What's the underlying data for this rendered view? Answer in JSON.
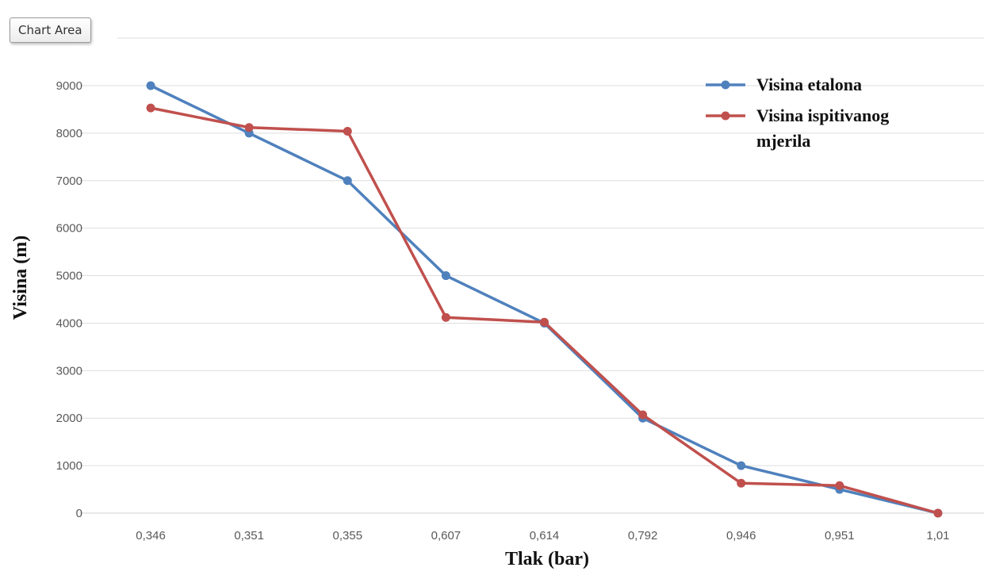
{
  "ui": {
    "tooltip": "Chart Area"
  },
  "chart_data": {
    "type": "line",
    "categories": [
      "0,346",
      "0,351",
      "0,355",
      "0,607",
      "0,614",
      "0,792",
      "0,946",
      "0,951",
      "1,01"
    ],
    "series": [
      {
        "name": "Visina etalona",
        "color": "#4F81BD",
        "values": [
          9000,
          8000,
          7000,
          5000,
          4000,
          2000,
          1000,
          500,
          0
        ]
      },
      {
        "name": "Visina ispitivanog mjerila",
        "color": "#C0504D",
        "values": [
          8530,
          8120,
          8040,
          4120,
          4020,
          2070,
          630,
          580,
          0
        ]
      }
    ],
    "title": "",
    "xlabel": "Tlak (bar)",
    "ylabel": "Visina (m)",
    "ylim": [
      0,
      9000
    ],
    "yticks": [
      "0",
      "1000",
      "2000",
      "3000",
      "4000",
      "5000",
      "6000",
      "7000",
      "8000",
      "9000"
    ],
    "grid": true,
    "legend": "top-right"
  }
}
